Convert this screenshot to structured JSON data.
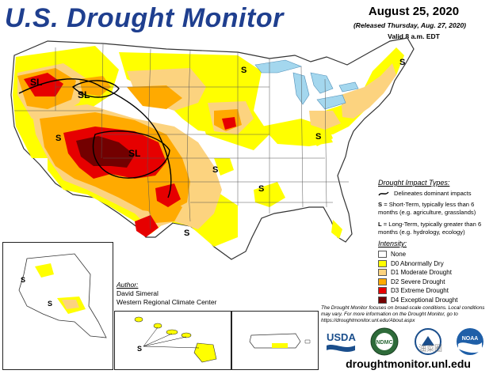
{
  "header": {
    "title": "U.S. Drought Monitor",
    "date": "August 25, 2020",
    "released": "(Released Thursday, Aug. 27, 2020)",
    "valid": "Valid 8 a.m. EDT"
  },
  "map_labels": {
    "short_term": "S",
    "long_term": "L",
    "short_long": "SL"
  },
  "impact": {
    "title": "Drought Impact Types:",
    "delineates": "Delineates dominant impacts",
    "short_term": {
      "key": "S",
      "text": " = Short-Term, typically less than 6 months (e.g. agriculture, grasslands)"
    },
    "long_term": {
      "key": "L",
      "text": " = Long-Term, typically greater than 6 months (e.g. hydrology, ecology)"
    }
  },
  "intensity": {
    "title": "Intensity:",
    "categories": [
      {
        "label": "None",
        "color": "#ffffff"
      },
      {
        "label": "D0 Abnormally Dry",
        "color": "#ffff00"
      },
      {
        "label": "D1 Moderate Drought",
        "color": "#fcd37f"
      },
      {
        "label": "D2 Severe Drought",
        "color": "#ffaa00"
      },
      {
        "label": "D3 Extreme Drought",
        "color": "#e60000"
      },
      {
        "label": "D4 Exceptional Drought",
        "color": "#730000"
      }
    ]
  },
  "author": {
    "label": "Author:",
    "name": "David Simeral",
    "org": "Western Regional Climate Center"
  },
  "note": "The Drought Monitor focuses on broad-scale conditions. Local conditions may vary. For more information on the Drought Monitor, go to https://droughtmonitor.unl.edu/About.aspx",
  "logos": {
    "usda": "USDA",
    "ndmc": "NDMC",
    "noaa": "NOAA"
  },
  "url": "droughtmonitor.unl.edu",
  "watermark": "油菜圈",
  "colors": {
    "title": "#1f3f8f",
    "water": "#a4d7ee",
    "none": "#ffffff",
    "d0": "#ffff00",
    "d1": "#fcd37f",
    "d2": "#ffaa00",
    "d3": "#e60000",
    "d4": "#730000"
  }
}
